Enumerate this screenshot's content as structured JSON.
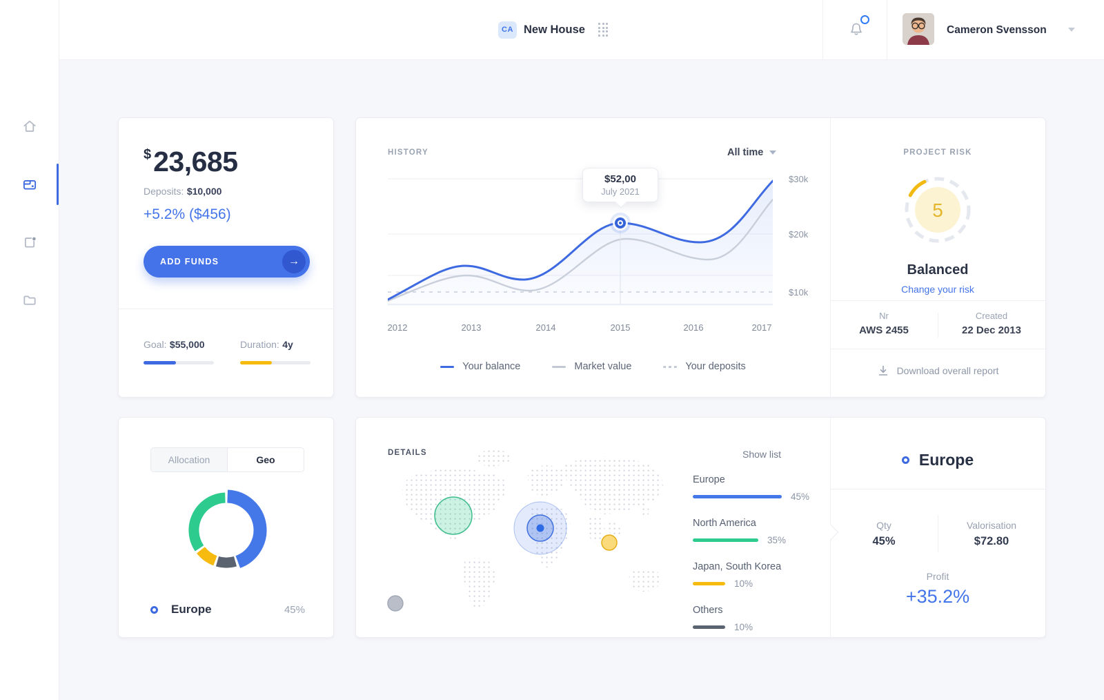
{
  "header": {
    "workspace_badge": "CA",
    "title": "New House",
    "user_name": "Cameron Svensson"
  },
  "summary": {
    "currency": "$",
    "balance": "23,685",
    "deposits_label": "Deposits:",
    "deposits_value": "$10,000",
    "change": "+5.2% ($456)",
    "add_funds_label": "ADD FUNDS",
    "goal_label": "Goal:",
    "goal_value": "$55,000",
    "goal_fill": "46%",
    "duration_label": "Duration:",
    "duration_value": "4y",
    "duration_fill": "45%"
  },
  "history": {
    "title": "HISTORY",
    "range_selector": "All time",
    "tooltip": {
      "value": "$52,00",
      "date": "July 2021"
    },
    "y_ticks": [
      "$30k",
      "$20k",
      "$10k"
    ],
    "x_ticks": [
      "2012",
      "2013",
      "2014",
      "2015",
      "2016",
      "2017"
    ],
    "legend": [
      {
        "label": "Your balance"
      },
      {
        "label": "Market value"
      },
      {
        "label": "Your deposits"
      }
    ],
    "series_estimate_k": {
      "years": [
        2012,
        2013,
        2014,
        2015,
        2016,
        2017
      ],
      "your_balance": [
        11,
        16,
        14.5,
        23,
        20.5,
        29.5
      ],
      "market_value": [
        10.5,
        14,
        12,
        21.5,
        17,
        26.5
      ],
      "your_deposits": [
        10,
        10,
        10,
        10,
        10,
        10
      ]
    }
  },
  "risk": {
    "title": "PROJECT RISK",
    "score": "5",
    "level": "Balanced",
    "change_link": "Change your risk",
    "nr_label": "Nr",
    "nr_value": "AWS 2455",
    "created_label": "Created",
    "created_value": "22 Dec 2013",
    "download_label": "Download overall report"
  },
  "allocation": {
    "tabs": [
      {
        "label": "Allocation",
        "active": false
      },
      {
        "label": "Geo",
        "active": true
      }
    ],
    "donut": [
      {
        "name": "Europe",
        "pct": 45,
        "color": "#4478e9"
      },
      {
        "name": "Others",
        "pct": 10,
        "color": "#5b6270"
      },
      {
        "name": "Japan, South Korea",
        "pct": 10,
        "color": "#f6bb0e"
      },
      {
        "name": "North America",
        "pct": 35,
        "color": "#2ecb8e"
      }
    ],
    "legend": {
      "label": "Europe",
      "pct": "45%"
    }
  },
  "details": {
    "title": "DETAILS",
    "show_list": "Show list",
    "regions": [
      {
        "name": "Europe",
        "pct": "45%",
        "color": "#4478e9",
        "bar": "129px"
      },
      {
        "name": "North America",
        "pct": "35%",
        "color": "#2ecb8e",
        "bar": "95px"
      },
      {
        "name": "Japan, South Korea",
        "pct": "10%",
        "color": "#f6bb0e",
        "bar": "47px"
      },
      {
        "name": "Others",
        "pct": "10%",
        "color": "#5b6270",
        "bar": "47px"
      }
    ]
  },
  "selection": {
    "region": "Europe",
    "qty_label": "Qty",
    "qty_value": "45%",
    "valorisation_label": "Valorisation",
    "valorisation_value": "$72.80",
    "profit_label": "Profit",
    "profit_value": "+35.2%"
  },
  "colors": {
    "accent_blue": "#4374e9",
    "yellow": "#f6bb0e",
    "green": "#2ecb8e",
    "slate": "#5b6270"
  }
}
